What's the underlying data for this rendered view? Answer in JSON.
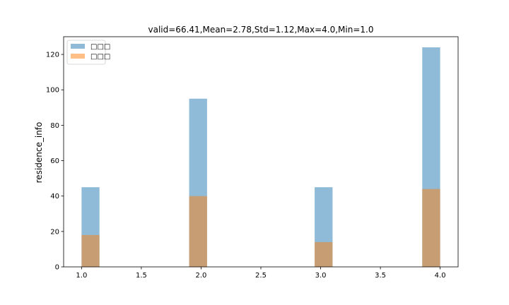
{
  "chart_data": {
    "type": "bar",
    "title": "valid=66.41,Mean=2.78,Std=1.12,Max=4.0,Min=1.0",
    "xlabel": "",
    "ylabel": "residence_info",
    "xlim": [
      0.85,
      4.15
    ],
    "ylim": [
      0,
      130
    ],
    "xticks": [
      1.0,
      1.5,
      2.0,
      2.5,
      3.0,
      3.5,
      4.0
    ],
    "xtick_labels": [
      "1.0",
      "1.5",
      "2.0",
      "2.5",
      "3.0",
      "3.5",
      "4.0"
    ],
    "yticks": [
      0,
      20,
      40,
      60,
      80,
      100,
      120
    ],
    "ytick_labels": [
      "0",
      "20",
      "40",
      "60",
      "80",
      "100",
      "120"
    ],
    "bin_width": 0.15,
    "legend_position": "top-left",
    "grid": false,
    "series": [
      {
        "name": "□□□",
        "color": "#1f77b4",
        "opacity": 0.5,
        "bins": [
          {
            "x": 1.0,
            "value": 45
          },
          {
            "x": 1.9,
            "value": 95
          },
          {
            "x": 2.95,
            "value": 45
          },
          {
            "x": 3.85,
            "value": 124
          }
        ]
      },
      {
        "name": "□□□",
        "color": "#ff7f0e",
        "opacity": 0.5,
        "bins": [
          {
            "x": 1.0,
            "value": 18
          },
          {
            "x": 1.9,
            "value": 40
          },
          {
            "x": 2.95,
            "value": 14
          },
          {
            "x": 3.85,
            "value": 44
          }
        ]
      }
    ]
  }
}
